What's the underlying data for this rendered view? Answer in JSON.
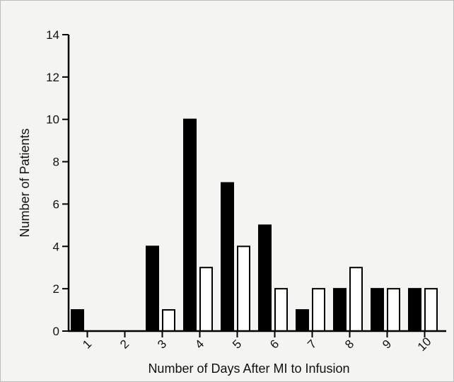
{
  "chart_data": {
    "type": "bar",
    "categories": [
      "1",
      "2",
      "3",
      "4",
      "5",
      "6",
      "7",
      "8",
      "9",
      "10"
    ],
    "series": [
      {
        "color": "#000000",
        "values": [
          1,
          0,
          4,
          10,
          7,
          5,
          1,
          2,
          2,
          2
        ]
      },
      {
        "color": "#ffffff",
        "values": [
          0,
          0,
          1,
          3,
          4,
          2,
          2,
          3,
          2,
          2
        ]
      }
    ],
    "title": "",
    "xlabel": "Number of Days After MI to Infusion",
    "ylabel": "Number of Patients",
    "ylim": [
      0,
      14
    ],
    "yticks": [
      0,
      2,
      4,
      6,
      8,
      10,
      12,
      14
    ],
    "grid": false
  }
}
